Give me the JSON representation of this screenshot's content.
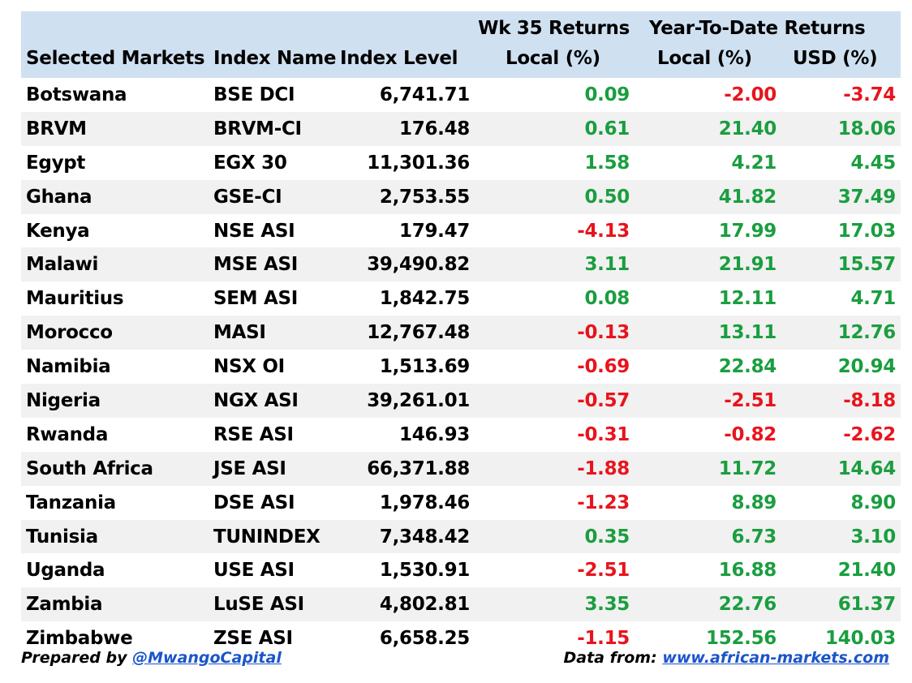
{
  "header": {
    "group_wk": "Wk 35 Returns",
    "group_ytd": "Year-To-Date Returns",
    "col_market": "Selected Markets",
    "col_index_name": "Index Name",
    "col_index_level": "Index Level",
    "col_wk_local": "Local (%)",
    "col_ytd_local": "Local (%)",
    "col_ytd_usd": "USD (%)"
  },
  "rows": [
    {
      "market": "Botswana",
      "index": "BSE DCI",
      "level": "6,741.71",
      "wk": "0.09",
      "ytd_local": "-2.00",
      "ytd_usd": "-3.74"
    },
    {
      "market": "BRVM",
      "index": "BRVM-CI",
      "level": "176.48",
      "wk": "0.61",
      "ytd_local": "21.40",
      "ytd_usd": "18.06"
    },
    {
      "market": "Egypt",
      "index": "EGX 30",
      "level": "11,301.36",
      "wk": "1.58",
      "ytd_local": "4.21",
      "ytd_usd": "4.45"
    },
    {
      "market": "Ghana",
      "index": "GSE-CI",
      "level": "2,753.55",
      "wk": "0.50",
      "ytd_local": "41.82",
      "ytd_usd": "37.49"
    },
    {
      "market": "Kenya",
      "index": "NSE ASI",
      "level": "179.47",
      "wk": "-4.13",
      "ytd_local": "17.99",
      "ytd_usd": "17.03"
    },
    {
      "market": "Malawi",
      "index": "MSE ASI",
      "level": "39,490.82",
      "wk": "3.11",
      "ytd_local": "21.91",
      "ytd_usd": "15.57"
    },
    {
      "market": "Mauritius",
      "index": "SEM ASI",
      "level": "1,842.75",
      "wk": "0.08",
      "ytd_local": "12.11",
      "ytd_usd": "4.71"
    },
    {
      "market": "Morocco",
      "index": "MASI",
      "level": "12,767.48",
      "wk": "-0.13",
      "ytd_local": "13.11",
      "ytd_usd": "12.76"
    },
    {
      "market": "Namibia",
      "index": "NSX OI",
      "level": "1,513.69",
      "wk": "-0.69",
      "ytd_local": "22.84",
      "ytd_usd": "20.94"
    },
    {
      "market": "Nigeria",
      "index": "NGX ASI",
      "level": "39,261.01",
      "wk": "-0.57",
      "ytd_local": "-2.51",
      "ytd_usd": "-8.18"
    },
    {
      "market": "Rwanda",
      "index": "RSE ASI",
      "level": "146.93",
      "wk": "-0.31",
      "ytd_local": "-0.82",
      "ytd_usd": "-2.62"
    },
    {
      "market": "South Africa",
      "index": "JSE ASI",
      "level": "66,371.88",
      "wk": "-1.88",
      "ytd_local": "11.72",
      "ytd_usd": "14.64"
    },
    {
      "market": "Tanzania",
      "index": "DSE ASI",
      "level": "1,978.46",
      "wk": "-1.23",
      "ytd_local": "8.89",
      "ytd_usd": "8.90"
    },
    {
      "market": "Tunisia",
      "index": "TUNINDEX",
      "level": "7,348.42",
      "wk": "0.35",
      "ytd_local": "6.73",
      "ytd_usd": "3.10"
    },
    {
      "market": "Uganda",
      "index": "USE ASI",
      "level": "1,530.91",
      "wk": "-2.51",
      "ytd_local": "16.88",
      "ytd_usd": "21.40"
    },
    {
      "market": "Zambia",
      "index": "LuSE ASI",
      "level": "4,802.81",
      "wk": "3.35",
      "ytd_local": "22.76",
      "ytd_usd": "61.37"
    },
    {
      "market": "Zimbabwe",
      "index": "ZSE ASI",
      "level": "6,658.25",
      "wk": "-1.15",
      "ytd_local": "152.56",
      "ytd_usd": "140.03"
    }
  ],
  "footer": {
    "prepared_prefix": "Prepared by ",
    "prepared_handle": "@MwangoCapital",
    "source_prefix": "Data from: ",
    "source_link": "www.african-markets.com"
  },
  "colors": {
    "header_bg": "#cfe0f1",
    "zebra_bg": "#f1f1f1",
    "positive": "#1a9e3f",
    "negative": "#e8141d",
    "link": "#1b55c9"
  }
}
